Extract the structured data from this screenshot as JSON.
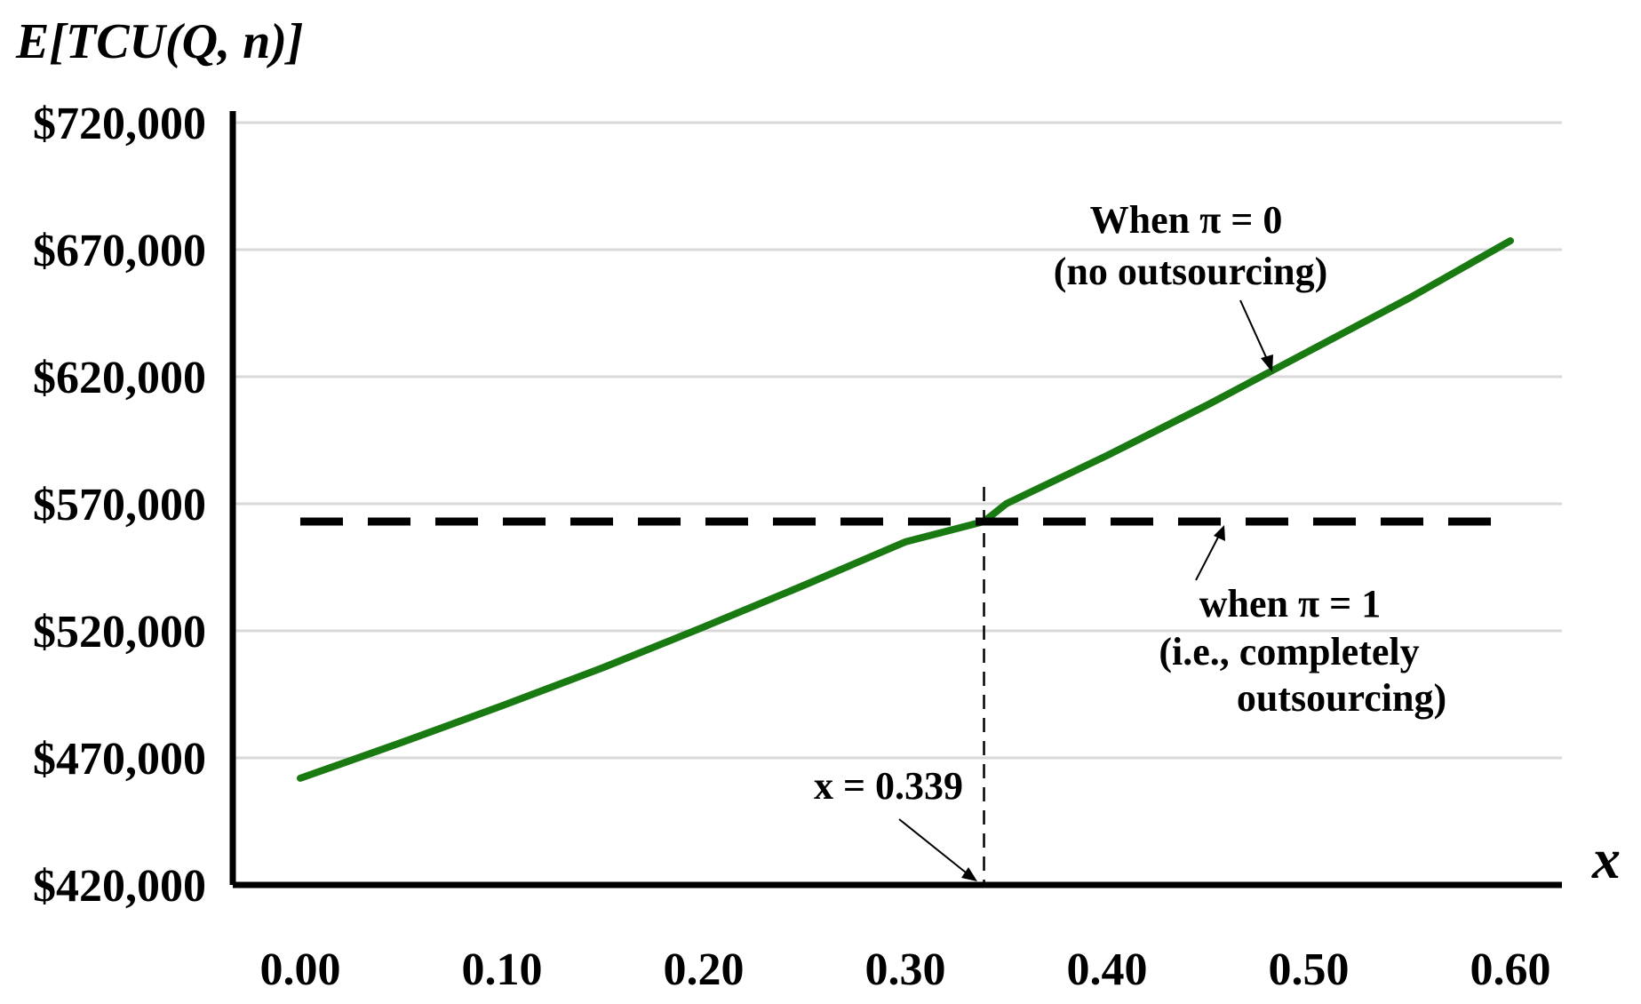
{
  "chart_data": {
    "type": "line",
    "ylabel": "E[TCU(Q, n)]",
    "xlabel": "x",
    "xlim": [
      0.0,
      0.6
    ],
    "ylim": [
      420000,
      720000
    ],
    "x_ticks": [
      "0.00",
      "0.10",
      "0.20",
      "0.30",
      "0.40",
      "0.50",
      "0.60"
    ],
    "y_ticks": [
      "$720,000",
      "$670,000",
      "$620,000",
      "$570,000",
      "$520,000",
      "$470,000",
      "$420,000"
    ],
    "y_tick_values": [
      720000,
      670000,
      620000,
      570000,
      520000,
      470000,
      420000
    ],
    "grid": "horizontal",
    "series": [
      {
        "name": "When π = 0 (no outsourcing)",
        "style": "solid",
        "color": "#1a7a12",
        "points": [
          [
            0.0,
            462000
          ],
          [
            0.05,
            476000
          ],
          [
            0.1,
            490500
          ],
          [
            0.15,
            505500
          ],
          [
            0.2,
            521500
          ],
          [
            0.25,
            538000
          ],
          [
            0.3,
            555000
          ],
          [
            0.339,
            563000
          ],
          [
            0.35,
            570000
          ],
          [
            0.4,
            589000
          ],
          [
            0.45,
            609000
          ],
          [
            0.5,
            630000
          ],
          [
            0.55,
            651000
          ],
          [
            0.6,
            673500
          ]
        ]
      },
      {
        "name": "when π = 1 (i.e., completely outsourcing)",
        "style": "dashed",
        "color": "#000000",
        "points": [
          [
            0.0,
            563000
          ],
          [
            0.6,
            563000
          ]
        ]
      }
    ],
    "annotations": {
      "pi0_line1": "When  π  = 0",
      "pi0_line2": "(no outsourcing)",
      "pi1_line1": "when  π  = 1",
      "pi1_line2": "(i.e., completely",
      "pi1_line3": "outsourcing)",
      "intersection_label": "x = 0.339",
      "intersection_x": 0.339
    }
  }
}
